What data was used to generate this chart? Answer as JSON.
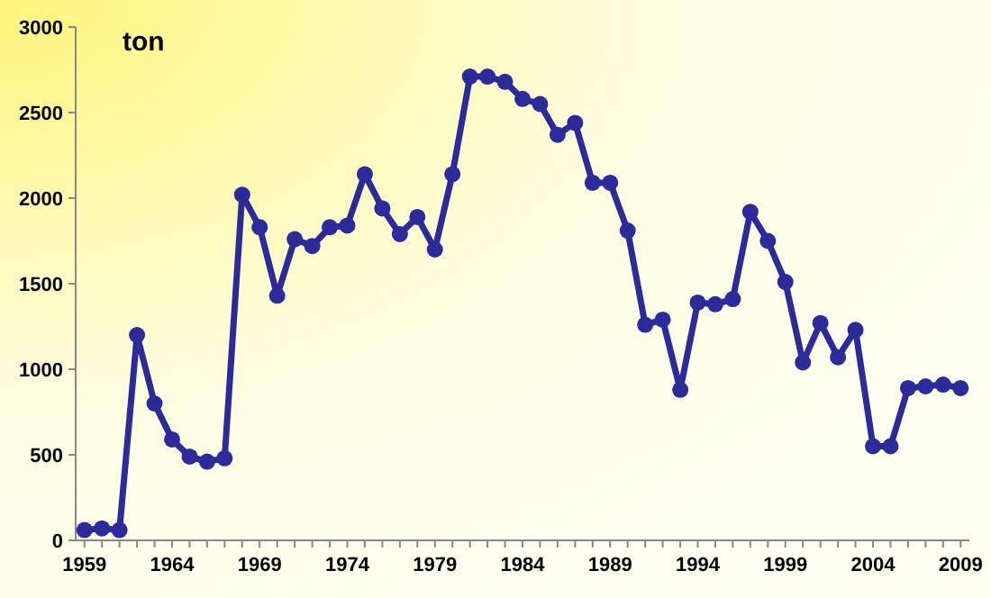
{
  "chart_data": {
    "type": "line",
    "ylabel": "ton",
    "x": [
      1959,
      1960,
      1961,
      1962,
      1963,
      1964,
      1965,
      1966,
      1967,
      1968,
      1969,
      1970,
      1971,
      1972,
      1973,
      1974,
      1975,
      1976,
      1977,
      1978,
      1979,
      1980,
      1981,
      1982,
      1983,
      1984,
      1985,
      1986,
      1987,
      1988,
      1989,
      1990,
      1991,
      1992,
      1993,
      1994,
      1995,
      1996,
      1997,
      1998,
      1999,
      2000,
      2001,
      2002,
      2003,
      2004,
      2005,
      2006,
      2007,
      2008,
      2009
    ],
    "series": [
      {
        "color": "#2b2b9c",
        "values": [
          60,
          70,
          60,
          1200,
          800,
          590,
          490,
          460,
          480,
          2020,
          1830,
          1430,
          1760,
          1720,
          1830,
          1840,
          2140,
          1940,
          1790,
          1890,
          1700,
          2140,
          2710,
          2710,
          2680,
          2580,
          2550,
          2370,
          2440,
          2090,
          2090,
          1810,
          1260,
          1290,
          880,
          1390,
          1380,
          1410,
          1920,
          1750,
          1510,
          1040,
          1270,
          1070,
          1230,
          550,
          550,
          890,
          900,
          910,
          890
        ]
      }
    ],
    "xlim": [
      1958.5,
      2009.5
    ],
    "xticks": [
      1959,
      {
        "value": 1960,
        "label": null
      },
      {
        "value": 1961,
        "label": null
      },
      {
        "value": 1962,
        "label": null
      },
      {
        "value": 1963,
        "label": null
      },
      1964,
      {
        "value": 1965,
        "label": null
      },
      {
        "value": 1966,
        "label": null
      },
      {
        "value": 1967,
        "label": null
      },
      {
        "value": 1968,
        "label": null
      },
      1969,
      {
        "value": 1970,
        "label": null
      },
      {
        "value": 1971,
        "label": null
      },
      {
        "value": 1972,
        "label": null
      },
      {
        "value": 1973,
        "label": null
      },
      1974,
      {
        "value": 1975,
        "label": null
      },
      {
        "value": 1976,
        "label": null
      },
      {
        "value": 1977,
        "label": null
      },
      {
        "value": 1978,
        "label": null
      },
      1979,
      {
        "value": 1980,
        "label": null
      },
      {
        "value": 1981,
        "label": null
      },
      {
        "value": 1982,
        "label": null
      },
      {
        "value": 1983,
        "label": null
      },
      1984,
      {
        "value": 1985,
        "label": null
      },
      {
        "value": 1986,
        "label": null
      },
      {
        "value": 1987,
        "label": null
      },
      {
        "value": 1988,
        "label": null
      },
      1989,
      {
        "value": 1990,
        "label": null
      },
      {
        "value": 1991,
        "label": null
      },
      {
        "value": 1992,
        "label": null
      },
      {
        "value": 1993,
        "label": null
      },
      1994,
      {
        "value": 1995,
        "label": null
      },
      {
        "value": 1996,
        "label": null
      },
      {
        "value": 1997,
        "label": null
      },
      {
        "value": 1998,
        "label": null
      },
      1999,
      {
        "value": 2000,
        "label": null
      },
      {
        "value": 2001,
        "label": null
      },
      {
        "value": 2002,
        "label": null
      },
      {
        "value": 2003,
        "label": null
      },
      2004,
      {
        "value": 2005,
        "label": null
      },
      {
        "value": 2006,
        "label": null
      },
      {
        "value": 2007,
        "label": null
      },
      {
        "value": 2008,
        "label": null
      },
      2009
    ],
    "ylim": [
      0,
      3000
    ],
    "yticks": [
      0,
      500,
      1000,
      1500,
      2000,
      2500,
      3000
    ],
    "grid": false,
    "marker": "circle",
    "line_style": "solid"
  }
}
